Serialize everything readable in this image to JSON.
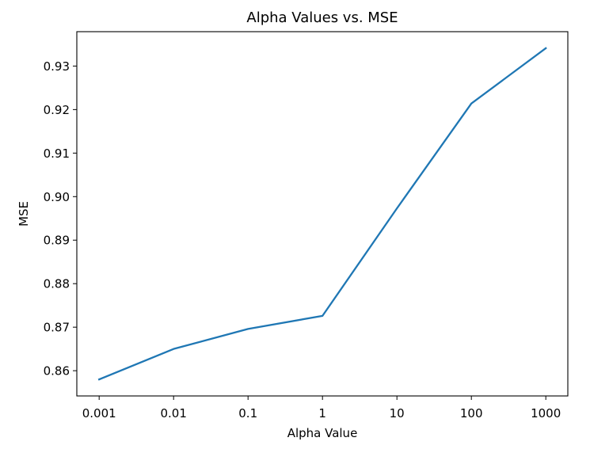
{
  "chart_data": {
    "type": "line",
    "title": "Alpha Values vs. MSE",
    "xlabel": "Alpha Value",
    "ylabel": "MSE",
    "categories": [
      "0.001",
      "0.01",
      "0.1",
      "1",
      "10",
      "100",
      "1000"
    ],
    "series": [
      {
        "values": [
          0.858,
          0.865,
          0.8696,
          0.8726,
          0.8973,
          0.9214,
          0.9341
        ],
        "color": "#1f77b4"
      }
    ],
    "ylim": [
      0.8542,
      0.9379
    ],
    "yticks": [
      "0.86",
      "0.87",
      "0.88",
      "0.89",
      "0.90",
      "0.91",
      "0.92",
      "0.93"
    ],
    "grid": false,
    "legend": "none"
  }
}
